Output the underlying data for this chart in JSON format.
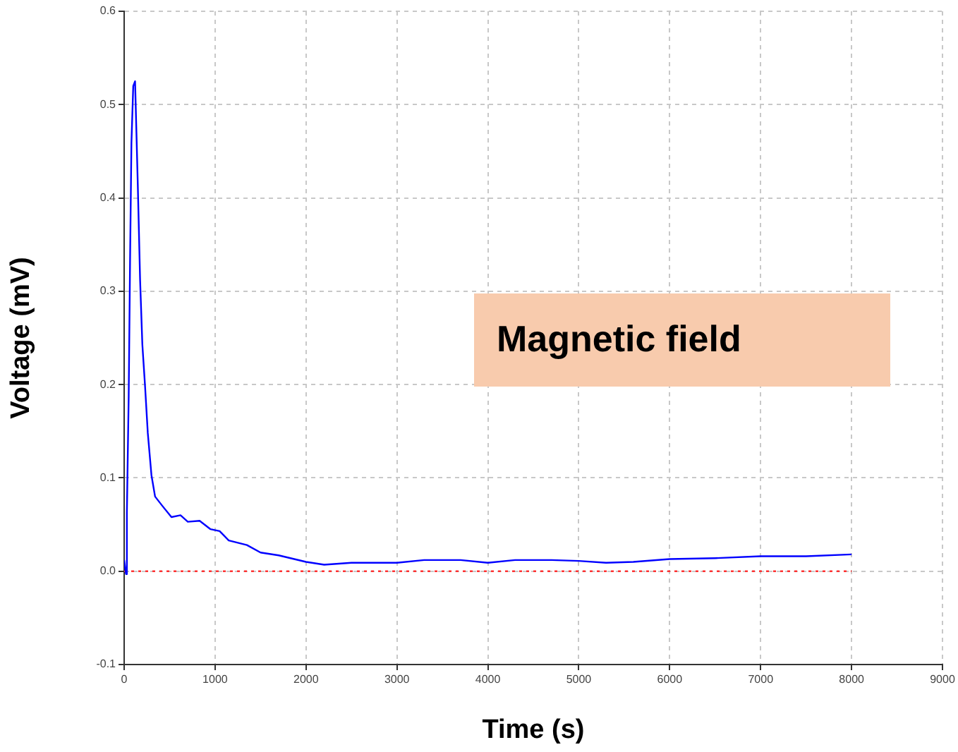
{
  "chart_data": {
    "type": "line",
    "xlabel": "Time (s)",
    "ylabel": "Voltage (mV)",
    "xlim": [
      0,
      9000
    ],
    "xticks": [
      0,
      1000,
      2000,
      3000,
      4000,
      5000,
      6000,
      7000,
      8000,
      9000
    ],
    "ylim": [
      -0.1,
      0.6
    ],
    "yticks": [
      {
        "value": -0.1,
        "label": "-0.1"
      },
      {
        "value": 0,
        "label": "0.0"
      },
      0.1,
      0.2,
      0.3,
      0.4,
      0.5,
      0.6
    ],
    "grid": true,
    "legend": false,
    "marker": "none",
    "annotations": [
      "Magnetic field"
    ],
    "series": [
      {
        "color": "#0000ff",
        "line_style": "solid",
        "x": [
          0,
          20,
          30,
          50,
          65,
          80,
          100,
          120,
          135,
          150,
          175,
          200,
          230,
          260,
          300,
          340,
          420,
          520,
          620,
          700,
          830,
          950,
          1050,
          1150,
          1350,
          1500,
          1700,
          2000,
          2200,
          2500,
          3000,
          3300,
          3700,
          4000,
          4300,
          4700,
          5000,
          5300,
          5600,
          6000,
          6500,
          7000,
          7500,
          8000
        ],
        "values": [
          0.012,
          -0.003,
          0.063,
          0.188,
          0.333,
          0.459,
          0.52,
          0.525,
          0.47,
          0.414,
          0.313,
          0.243,
          0.198,
          0.148,
          0.103,
          0.08,
          0.07,
          0.058,
          0.06,
          0.053,
          0.054,
          0.045,
          0.043,
          0.033,
          0.028,
          0.02,
          0.017,
          0.01,
          0.007,
          0.009,
          0.009,
          0.012,
          0.012,
          0.009,
          0.012,
          0.012,
          0.011,
          0.009,
          0.01,
          0.013,
          0.014,
          0.016,
          0.016,
          0.018
        ]
      },
      {
        "color": "#ff3333",
        "line_style": "dotted",
        "x": [
          0,
          8000
        ],
        "values": [
          0,
          0
        ]
      }
    ]
  }
}
